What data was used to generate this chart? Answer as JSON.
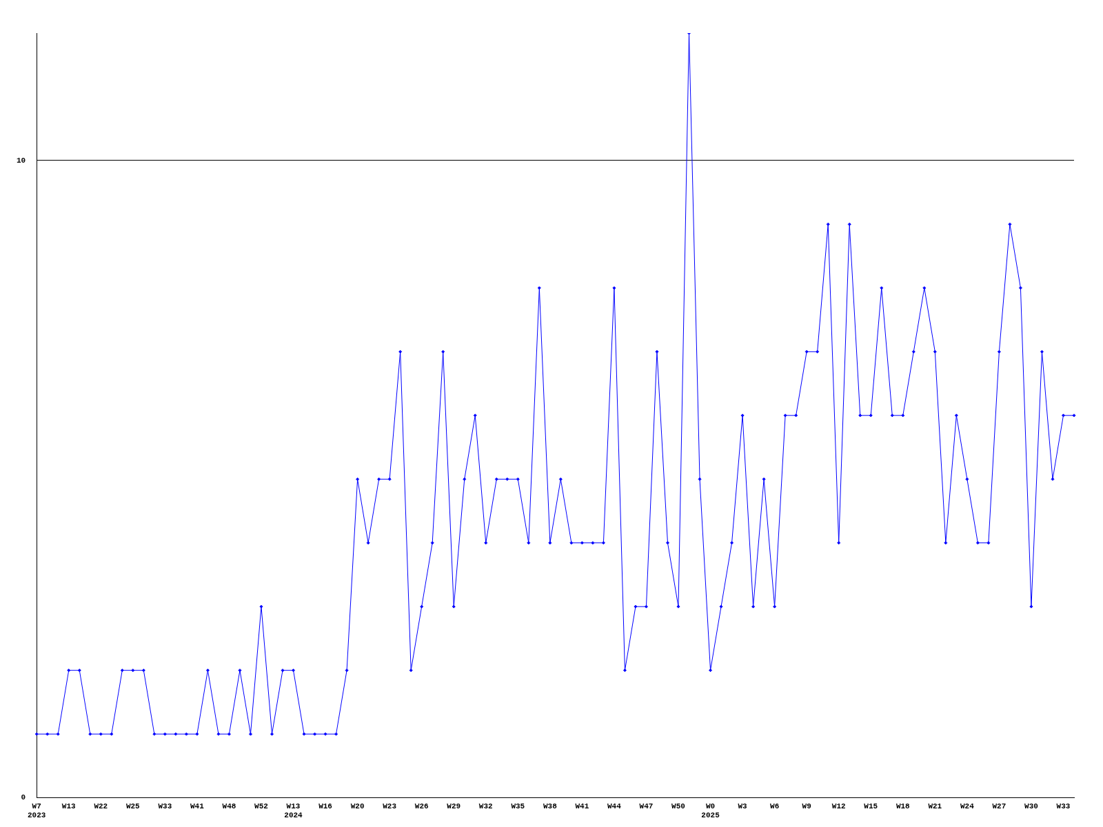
{
  "chart_data": {
    "type": "line",
    "categories": [
      "W7\n2023",
      null,
      null,
      "W13",
      null,
      null,
      "W22",
      null,
      null,
      "W25",
      null,
      null,
      "W33",
      null,
      null,
      "W41",
      null,
      null,
      "W48",
      null,
      null,
      "W52",
      null,
      null,
      "W13\n2024",
      null,
      null,
      "W16",
      null,
      null,
      "W20",
      null,
      null,
      "W23",
      null,
      null,
      "W26",
      null,
      null,
      "W29",
      null,
      null,
      "W32",
      null,
      null,
      "W35",
      null,
      null,
      "W38",
      null,
      null,
      "W41",
      null,
      null,
      "W44",
      null,
      null,
      "W47",
      null,
      null,
      "W50",
      null,
      null,
      "W0\n2025",
      null,
      null,
      "W3",
      null,
      null,
      "W6",
      null,
      null,
      "W9",
      null,
      null,
      "W12",
      null,
      null,
      "W15",
      null,
      null,
      "W18",
      null,
      null,
      "W21",
      null,
      null,
      "W24",
      null,
      null,
      "W27",
      null,
      null,
      "W30",
      null,
      null,
      "W33",
      null
    ],
    "series": [
      {
        "color": "#0000ff",
        "values": [
          1,
          1,
          1,
          2,
          2,
          1,
          1,
          1,
          2,
          2,
          2,
          1,
          1,
          1,
          1,
          1,
          2,
          1,
          1,
          2,
          1,
          3,
          1,
          2,
          2,
          1,
          1,
          1,
          1,
          2,
          5,
          4,
          5,
          5,
          7,
          2,
          3,
          4,
          7,
          3,
          5,
          6,
          4,
          5,
          5,
          5,
          4,
          8,
          4,
          5,
          4,
          4,
          4,
          4,
          8,
          2,
          3,
          3,
          7,
          4,
          3,
          12,
          5,
          2,
          3,
          4,
          6,
          3,
          5,
          3,
          6,
          6,
          7,
          7,
          9,
          4,
          9,
          6,
          6,
          8,
          6,
          6,
          7,
          8,
          7,
          4,
          6,
          5,
          4,
          4,
          7,
          9,
          8,
          3,
          7,
          5,
          6,
          6
        ]
      }
    ],
    "ylim": [
      0,
      12
    ],
    "yticks": [
      0,
      10
    ],
    "grid": "y",
    "legend": false,
    "marker": "diamond",
    "line_style": "solid"
  }
}
